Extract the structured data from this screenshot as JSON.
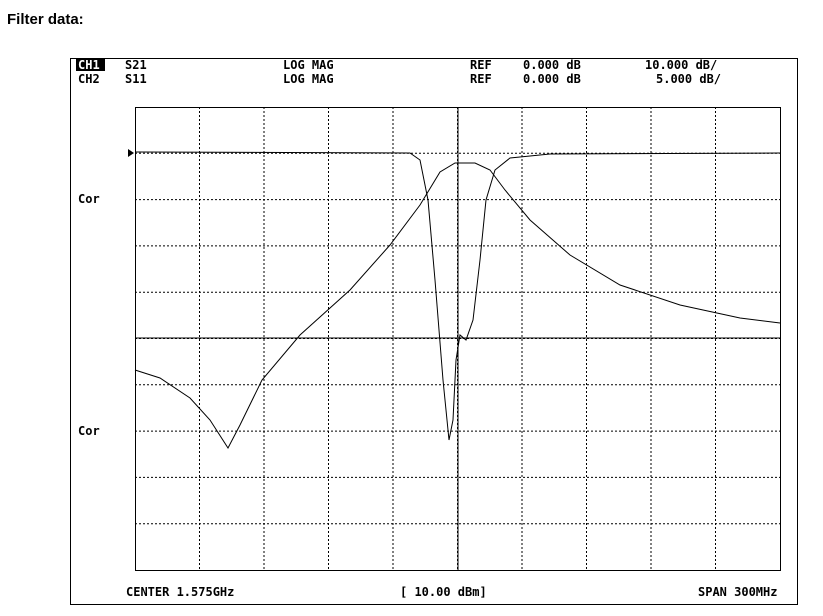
{
  "title": "Filter data:",
  "header": {
    "rows": [
      {
        "channel": "CH1",
        "param": "S21",
        "format": "LOG MAG",
        "ref_label": "REF",
        "ref": "0.000 dB",
        "scale": "10.000 dB/"
      },
      {
        "channel": "CH2",
        "param": "S11",
        "format": "LOG MAG",
        "ref_label": "REF",
        "ref": "0.000 dB",
        "scale": "5.000 dB/"
      }
    ]
  },
  "side_labels": [
    "Cor",
    "Cor"
  ],
  "footer": {
    "center": "CENTER 1.575GHz",
    "power": "[ 10.00 dBm]",
    "span": "SPAN 300MHz"
  }
}
